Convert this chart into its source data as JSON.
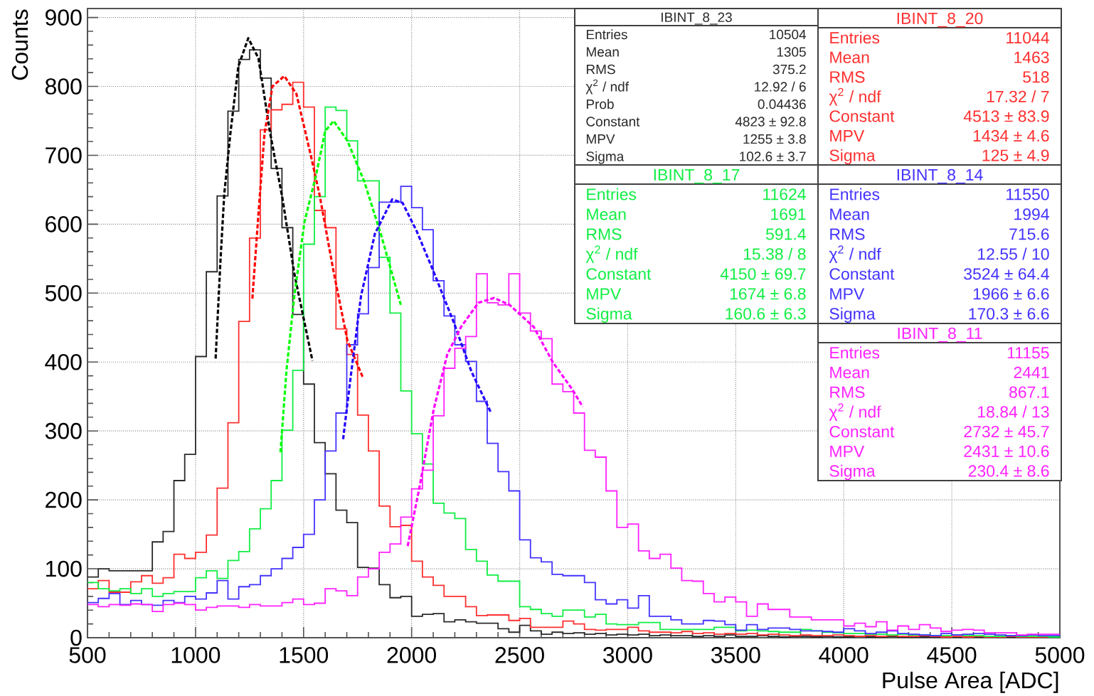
{
  "chart_data": {
    "type": "histogram",
    "xlabel": "Pulse Area [ADC]",
    "ylabel": "Counts",
    "bins": [
      500,
      550,
      600,
      650,
      700,
      750,
      800,
      850,
      900,
      950,
      1000,
      1050,
      1100,
      1150,
      1200,
      1250,
      1300,
      1350,
      1400,
      1450,
      1500,
      1550,
      1600,
      1650,
      1700,
      1750,
      1800,
      1850,
      1900,
      1950,
      2000,
      2050,
      2100,
      2150,
      2200,
      2250,
      2300,
      2350,
      2400,
      2450,
      2500,
      2550,
      2600,
      2650,
      2700,
      2750,
      2800,
      2850,
      2900,
      2950,
      3000,
      3050,
      3100,
      3150,
      3200,
      3250,
      3300,
      3350,
      3400,
      3450,
      3500,
      3550,
      3600,
      3650,
      3700,
      3750,
      3800,
      3850,
      3900,
      3950,
      4000,
      4050,
      4100,
      4150,
      4200,
      4250,
      4300,
      4350,
      4400,
      4450,
      4500,
      4550,
      4600,
      4650,
      4700,
      4750,
      4800,
      4850,
      4900,
      4950,
      5000
    ],
    "xlim": [
      500,
      5000
    ],
    "ylim": [
      0,
      913
    ],
    "xticks": [
      500,
      1000,
      1500,
      2000,
      2500,
      3000,
      3500,
      4000,
      4500,
      5000
    ],
    "yticks": [
      0,
      100,
      200,
      300,
      400,
      500,
      600,
      700,
      800,
      900
    ],
    "grid": true,
    "series": [
      {
        "name": "IBINT_8_23",
        "color": "#2a2a2a",
        "values": [
          88,
          100,
          97,
          97,
          97,
          97,
          139,
          154,
          228,
          266,
          408,
          531,
          641,
          764,
          839,
          853,
          812,
          681,
          595,
          469,
          368,
          283,
          238,
          185,
          167,
          102,
          101,
          77,
          58,
          60,
          31,
          34,
          35,
          23,
          26,
          23,
          21,
          21,
          13,
          8,
          18,
          10,
          5,
          8,
          6,
          7,
          5,
          6,
          4,
          5,
          4,
          5,
          3,
          4,
          3,
          3,
          2,
          3,
          2,
          4,
          2,
          2,
          3,
          2,
          1,
          2,
          2,
          1,
          2,
          1,
          1,
          2,
          1,
          1,
          2,
          1,
          1,
          1,
          0,
          1,
          1,
          0,
          1,
          1,
          0,
          1,
          0,
          1,
          0,
          1
        ]
      },
      {
        "name": "IBINT_8_20",
        "color": "#ff3030",
        "values": [
          71,
          83,
          66,
          66,
          81,
          90,
          79,
          87,
          121,
          115,
          124,
          149,
          217,
          312,
          459,
          580,
          737,
          766,
          774,
          806,
          770,
          620,
          595,
          448,
          411,
          323,
          271,
          191,
          161,
          163,
          111,
          88,
          76,
          60,
          60,
          45,
          32,
          33,
          33,
          25,
          28,
          15,
          15,
          15,
          24,
          20,
          12,
          11,
          12,
          12,
          15,
          10,
          8,
          8,
          7,
          9,
          6,
          7,
          5,
          6,
          5,
          6,
          4,
          5,
          4,
          3,
          4,
          3,
          3,
          4,
          3,
          2,
          3,
          2,
          3,
          2,
          2,
          3,
          2,
          1,
          2,
          1,
          2,
          1,
          1,
          2,
          1,
          1,
          1,
          1
        ]
      },
      {
        "name": "IBINT_8_17",
        "color": "#11ee44",
        "values": [
          80,
          71,
          68,
          71,
          64,
          71,
          60,
          64,
          67,
          67,
          87,
          97,
          86,
          112,
          125,
          158,
          187,
          228,
          301,
          388,
          571,
          640,
          770,
          765,
          721,
          663,
          663,
          552,
          471,
          358,
          296,
          252,
          195,
          181,
          173,
          128,
          111,
          91,
          82,
          82,
          45,
          41,
          35,
          31,
          40,
          40,
          30,
          34,
          20,
          19,
          19,
          22,
          22,
          12,
          12,
          12,
          12,
          12,
          15,
          15,
          10,
          11,
          10,
          9,
          8,
          8,
          12,
          10,
          8,
          7,
          6,
          6,
          5,
          5,
          4,
          5,
          4,
          4,
          3,
          3,
          4,
          3,
          3,
          2,
          2,
          3,
          2,
          2,
          2,
          1
        ]
      },
      {
        "name": "IBINT_8_14",
        "color": "#4433ff",
        "values": [
          51,
          57,
          64,
          48,
          54,
          48,
          47,
          54,
          51,
          60,
          56,
          65,
          83,
          56,
          74,
          77,
          90,
          100,
          115,
          131,
          150,
          200,
          271,
          326,
          425,
          470,
          537,
          632,
          632,
          655,
          624,
          592,
          518,
          467,
          425,
          401,
          343,
          282,
          241,
          213,
          142,
          116,
          110,
          92,
          90,
          90,
          80,
          55,
          49,
          55,
          43,
          61,
          31,
          31,
          26,
          20,
          20,
          25,
          24,
          19,
          11,
          19,
          12,
          14,
          14,
          12,
          10,
          10,
          9,
          8,
          13,
          10,
          6,
          8,
          10,
          6,
          5,
          4,
          3,
          6,
          4,
          5,
          6,
          5,
          4,
          3,
          3,
          4,
          3,
          3
        ]
      },
      {
        "name": "IBINT_8_11",
        "color": "#ff22ff",
        "values": [
          48,
          45,
          48,
          47,
          49,
          48,
          38,
          48,
          50,
          48,
          40,
          44,
          46,
          46,
          44,
          48,
          46,
          46,
          51,
          56,
          48,
          50,
          71,
          68,
          61,
          88,
          100,
          124,
          136,
          175,
          216,
          243,
          322,
          391,
          420,
          437,
          528,
          486,
          483,
          528,
          471,
          445,
          434,
          368,
          357,
          326,
          272,
          262,
          213,
          160,
          165,
          126,
          115,
          121,
          101,
          83,
          82,
          64,
          52,
          59,
          52,
          31,
          49,
          41,
          41,
          30,
          30,
          26,
          26,
          26,
          17,
          21,
          16,
          23,
          11,
          17,
          12,
          19,
          14,
          9,
          11,
          12,
          11,
          7,
          7,
          7,
          4,
          5,
          5,
          5
        ]
      },
      {
        "type": "line",
        "line_style": "dashed",
        "color": "#000000",
        "x": [
          1093,
          1115,
          1133,
          1161,
          1198,
          1244,
          1291,
          1346,
          1402,
          1458,
          1541
        ],
        "values": [
          405,
          545,
          644,
          731,
          829,
          870,
          841,
          731,
          638,
          527,
          402
        ]
      },
      {
        "type": "line",
        "line_style": "dashed",
        "color": "#ff0000",
        "x": [
          1263,
          1291,
          1319,
          1356,
          1411,
          1467,
          1532,
          1575,
          1639,
          1703,
          1774
        ],
        "values": [
          492,
          614,
          731,
          800,
          815,
          789,
          702,
          641,
          531,
          431,
          378
        ]
      },
      {
        "type": "line",
        "line_style": "dashed",
        "color": "#00ff00",
        "x": [
          1393,
          1421,
          1458,
          1504,
          1559,
          1600,
          1639,
          1703,
          1782,
          1862,
          1950
        ],
        "values": [
          269,
          388,
          498,
          603,
          673,
          735,
          750,
          721,
          661,
          581,
          483
        ]
      },
      {
        "type": "line",
        "line_style": "dashed",
        "color": "#2200ff",
        "x": [
          1683,
          1719,
          1766,
          1830,
          1910,
          1958,
          2022,
          2102,
          2197,
          2277,
          2365
        ],
        "values": [
          288,
          381,
          496,
          586,
          636,
          631,
          591,
          531,
          456,
          386,
          328
        ]
      },
      {
        "type": "line",
        "line_style": "dashed",
        "color": "#ff00ff",
        "x": [
          1982,
          2038,
          2102,
          2165,
          2229,
          2309,
          2381,
          2453,
          2565,
          2653,
          2742,
          2792
        ],
        "values": [
          133,
          221,
          331,
          411,
          451,
          486,
          493,
          483,
          451,
          400,
          361,
          335
        ]
      }
    ],
    "annotations": [
      "Entries",
      "10504",
      "Mean",
      "1305",
      "RMS",
      "375.2",
      "χ$^{2}$ / ndf",
      "12.92 / 6",
      "Prob",
      "0.04436",
      "Constant",
      "4823 ± 92.8",
      "MPV",
      "1255 ± 3.8",
      "Sigma",
      "102.6 ± 3.7",
      "Entries",
      "11044",
      "Mean",
      "1463",
      "RMS",
      "518",
      "χ$^{2}$ / ndf",
      "17.32 / 7",
      "Constant",
      "4513 ± 83.9",
      "MPV",
      "1434 ± 4.6",
      "Sigma",
      "125 ± 4.9",
      "Entries",
      "11624",
      "Mean",
      "1691",
      "RMS",
      "591.4",
      "χ$^{2}$ / ndf",
      "15.38 / 8",
      "Constant",
      "4150 ± 69.7",
      "MPV",
      "1674 ± 6.8",
      "Sigma",
      "160.6 ± 6.3",
      "Entries",
      "11550",
      "Mean",
      "1994",
      "RMS",
      "715.6",
      "χ$^{2}$ / ndf",
      "12.55 / 10",
      "Constant",
      "3524 ± 64.4",
      "MPV",
      "1966 ± 6.6",
      "Sigma",
      "170.3 ± 6.6",
      "Entries",
      "11155",
      "Mean",
      "2441",
      "RMS",
      "867.1",
      "χ$^{2}$ / ndf",
      "18.84 / 13",
      "Constant",
      "2732 ± 45.7",
      "MPV",
      "2431 ± 10.6",
      "Sigma",
      "230.4 ± 8.6"
    ]
  }
}
